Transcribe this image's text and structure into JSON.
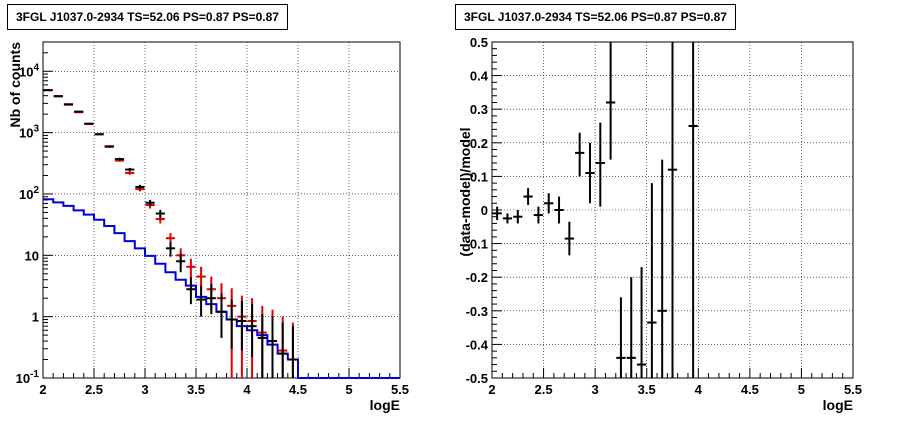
{
  "chart_data": [
    {
      "type": "step-histogram",
      "title": "3FGL J1037.0-2934 TS=52.06 PS=0.87 PS=0.87",
      "xlabel": "logE",
      "ylabel": "Nb of counts",
      "xlim": [
        2,
        5.5
      ],
      "ylim": [
        0.1,
        30000
      ],
      "yscale": "log",
      "grid": true,
      "xticks": [
        "2",
        "2.5",
        "3",
        "3.5",
        "4",
        "4.5",
        "5",
        "5.5"
      ],
      "yticks": [
        "10^-1",
        "1",
        "10",
        "10^2",
        "10^3",
        "10^4"
      ],
      "colors": {
        "data": "#000000",
        "model": "#e00000",
        "background": "#0000dd"
      },
      "series": [
        {
          "role": "data",
          "points": [
            {
              "x": 2.05,
              "y": 4900,
              "lo": 4800,
              "hi": 5000
            },
            {
              "x": 2.15,
              "y": 3900,
              "lo": 3820,
              "hi": 3980
            },
            {
              "x": 2.25,
              "y": 2900,
              "lo": 2840,
              "hi": 2960
            },
            {
              "x": 2.35,
              "y": 2200,
              "lo": 2150,
              "hi": 2250
            },
            {
              "x": 2.45,
              "y": 1400,
              "lo": 1360,
              "hi": 1440
            },
            {
              "x": 2.55,
              "y": 940,
              "lo": 905,
              "hi": 975
            },
            {
              "x": 2.65,
              "y": 590,
              "lo": 565,
              "hi": 615
            },
            {
              "x": 2.75,
              "y": 370,
              "lo": 350,
              "hi": 390
            },
            {
              "x": 2.85,
              "y": 250,
              "lo": 235,
              "hi": 265
            },
            {
              "x": 2.95,
              "y": 130,
              "lo": 119,
              "hi": 141
            },
            {
              "x": 3.05,
              "y": 72,
              "lo": 64,
              "hi": 80
            },
            {
              "x": 3.15,
              "y": 48,
              "lo": 41,
              "hi": 55
            },
            {
              "x": 3.25,
              "y": 13,
              "lo": 9.5,
              "hi": 16.5
            },
            {
              "x": 3.35,
              "y": 8,
              "lo": 5.3,
              "hi": 10.7
            },
            {
              "x": 3.45,
              "y": 2.8,
              "lo": 1.6,
              "hi": 4.4
            },
            {
              "x": 3.55,
              "y": 1.9,
              "lo": 1.0,
              "hi": 3.2
            },
            {
              "x": 3.65,
              "y": 2.0,
              "lo": 1.1,
              "hi": 3.4
            },
            {
              "x": 3.75,
              "y": 1.2,
              "lo": 0.45,
              "hi": 2.4
            },
            {
              "x": 3.85,
              "y": 0.9,
              "lo": 0.3,
              "hi": 1.9
            },
            {
              "x": 3.95,
              "y": 0.85,
              "lo": 0.28,
              "hi": 1.8
            },
            {
              "x": 4.05,
              "y": 0.7,
              "lo": 0.22,
              "hi": 1.6
            },
            {
              "x": 4.15,
              "y": 0.45,
              "lo": 0.1,
              "hi": 1.1
            },
            {
              "x": 4.25,
              "y": 0.4,
              "lo": 0.1,
              "hi": 1.0
            },
            {
              "x": 4.35,
              "y": 0.25,
              "lo": 0.1,
              "hi": 0.8
            },
            {
              "x": 4.45,
              "y": 0.2,
              "lo": 0.1,
              "hi": 0.7
            }
          ]
        },
        {
          "role": "model",
          "points": [
            {
              "x": 2.05,
              "y": 4950,
              "lo": 4880,
              "hi": 5020
            },
            {
              "x": 2.15,
              "y": 3950,
              "lo": 3890,
              "hi": 4010
            },
            {
              "x": 2.25,
              "y": 2850,
              "lo": 2800,
              "hi": 2900
            },
            {
              "x": 2.35,
              "y": 2150,
              "lo": 2110,
              "hi": 2190
            },
            {
              "x": 2.45,
              "y": 1380,
              "lo": 1350,
              "hi": 1410
            },
            {
              "x": 2.55,
              "y": 940,
              "lo": 915,
              "hi": 965
            },
            {
              "x": 2.65,
              "y": 600,
              "lo": 580,
              "hi": 620
            },
            {
              "x": 2.75,
              "y": 350,
              "lo": 335,
              "hi": 365
            },
            {
              "x": 2.85,
              "y": 220,
              "lo": 205,
              "hi": 235
            },
            {
              "x": 2.95,
              "y": 120,
              "lo": 110,
              "hi": 130
            },
            {
              "x": 3.05,
              "y": 66,
              "lo": 58,
              "hi": 74
            },
            {
              "x": 3.15,
              "y": 39,
              "lo": 33,
              "hi": 45
            },
            {
              "x": 3.25,
              "y": 19,
              "lo": 15,
              "hi": 23
            },
            {
              "x": 3.35,
              "y": 10,
              "lo": 7,
              "hi": 13
            },
            {
              "x": 3.45,
              "y": 6.5,
              "lo": 4.3,
              "hi": 8.8
            },
            {
              "x": 3.55,
              "y": 4.5,
              "lo": 2.7,
              "hi": 6.5
            },
            {
              "x": 3.65,
              "y": 2.8,
              "lo": 1.3,
              "hi": 4.5
            },
            {
              "x": 3.75,
              "y": 2.0,
              "lo": 0.8,
              "hi": 3.5
            },
            {
              "x": 3.85,
              "y": 1.5,
              "lo": 0.1,
              "hi": 2.9
            },
            {
              "x": 3.95,
              "y": 1.0,
              "lo": 0.1,
              "hi": 2.2
            },
            {
              "x": 4.05,
              "y": 0.85,
              "lo": 0.1,
              "hi": 2.0
            },
            {
              "x": 4.15,
              "y": 0.55,
              "lo": 0.1,
              "hi": 1.5
            },
            {
              "x": 4.25,
              "y": 0.4,
              "lo": 0.1,
              "hi": 1.3
            },
            {
              "x": 4.35,
              "y": 0.28,
              "lo": 0.1,
              "hi": 1.0
            },
            {
              "x": 4.45,
              "y": 0.2,
              "lo": 0.1,
              "hi": 0.8
            }
          ]
        },
        {
          "role": "background",
          "bin_edges": [
            2.0,
            2.1,
            2.2,
            2.3,
            2.4,
            2.5,
            2.6,
            2.7,
            2.8,
            2.9,
            3.0,
            3.1,
            3.2,
            3.3,
            3.4,
            3.5,
            3.6,
            3.7,
            3.8,
            3.9,
            4.0,
            4.1,
            4.2,
            4.3,
            4.4,
            4.5,
            5.5
          ],
          "values": [
            82,
            73,
            64,
            54,
            46,
            38,
            30,
            23,
            17,
            13,
            9.8,
            7.3,
            5.3,
            4.0,
            3.2,
            2.1,
            1.6,
            1.2,
            0.9,
            0.7,
            0.6,
            0.5,
            0.35,
            0.25,
            0.2,
            0.1
          ]
        }
      ]
    },
    {
      "type": "errorbar",
      "title": "3FGL J1037.0-2934 TS=52.06 PS=0.87 PS=0.87",
      "xlabel": "logE",
      "ylabel": "(data-model)/model",
      "xlim": [
        2,
        5.5
      ],
      "ylim": [
        -0.5,
        0.5
      ],
      "grid": true,
      "xticks": [
        "2",
        "2.5",
        "3",
        "3.5",
        "4",
        "4.5",
        "5",
        "5.5"
      ],
      "yticks": [
        "-0.5",
        "-0.4",
        "-0.3",
        "-0.2",
        "-0.1",
        "0",
        "0.1",
        "0.2",
        "0.3",
        "0.4",
        "0.5"
      ],
      "points": [
        {
          "x": 2.05,
          "y": -0.01,
          "lo": -0.03,
          "hi": 0.01
        },
        {
          "x": 2.15,
          "y": -0.025,
          "lo": -0.04,
          "hi": -0.01
        },
        {
          "x": 2.25,
          "y": -0.02,
          "lo": -0.04,
          "hi": 0.0
        },
        {
          "x": 2.35,
          "y": 0.04,
          "lo": 0.015,
          "hi": 0.065
        },
        {
          "x": 2.45,
          "y": -0.015,
          "lo": -0.04,
          "hi": 0.01
        },
        {
          "x": 2.55,
          "y": 0.02,
          "lo": -0.01,
          "hi": 0.05
        },
        {
          "x": 2.65,
          "y": 0.0,
          "lo": -0.04,
          "hi": 0.04
        },
        {
          "x": 2.75,
          "y": -0.085,
          "lo": -0.135,
          "hi": -0.035
        },
        {
          "x": 2.85,
          "y": 0.17,
          "lo": 0.1,
          "hi": 0.23
        },
        {
          "x": 2.95,
          "y": 0.11,
          "lo": 0.02,
          "hi": 0.2
        },
        {
          "x": 3.05,
          "y": 0.14,
          "lo": 0.01,
          "hi": 0.26
        },
        {
          "x": 3.15,
          "y": 0.32,
          "lo": 0.15,
          "hi": 0.5
        },
        {
          "x": 3.25,
          "y": -0.44,
          "lo": -0.5,
          "hi": -0.26
        },
        {
          "x": 3.35,
          "y": -0.44,
          "lo": -0.5,
          "hi": -0.2
        },
        {
          "x": 3.45,
          "y": -0.46,
          "lo": -0.5,
          "hi": -0.17
        },
        {
          "x": 3.55,
          "y": -0.335,
          "lo": -0.5,
          "hi": 0.08
        },
        {
          "x": 3.65,
          "y": -0.3,
          "lo": -0.5,
          "hi": 0.15
        },
        {
          "x": 3.75,
          "y": 0.12,
          "lo": -0.5,
          "hi": 0.5
        },
        {
          "x": 3.95,
          "y": 0.25,
          "lo": -0.5,
          "hi": 0.5
        }
      ]
    }
  ]
}
